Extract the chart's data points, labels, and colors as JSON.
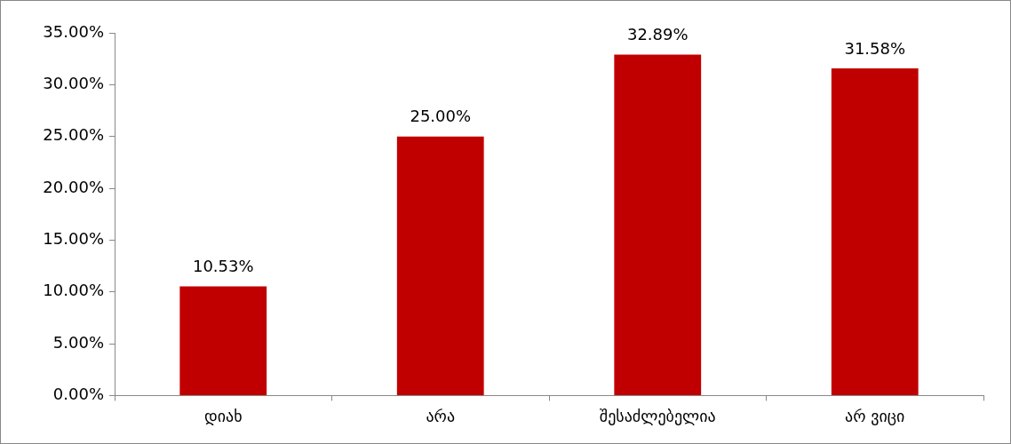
{
  "chart_data": {
    "type": "bar",
    "categories": [
      "დიახ",
      "არა",
      "შესაძლებელია",
      "არ ვიცი"
    ],
    "values": [
      10.53,
      25.0,
      32.89,
      31.58
    ],
    "color": "#c00000",
    "value_labels": [
      "10.53%",
      "25.00%",
      "32.89%",
      "31.58%"
    ],
    "ylim": [
      0,
      35
    ],
    "yticks": [
      {
        "value": 0,
        "label": "0.00%"
      },
      {
        "value": 5,
        "label": "5.00%"
      },
      {
        "value": 10,
        "label": "10.00%"
      },
      {
        "value": 15,
        "label": "15.00%"
      },
      {
        "value": 20,
        "label": "20.00%"
      },
      {
        "value": 25,
        "label": "25.00%"
      },
      {
        "value": 30,
        "label": "30.00%"
      },
      {
        "value": 35,
        "label": "35.00%"
      }
    ],
    "grid": false,
    "legend": false
  }
}
